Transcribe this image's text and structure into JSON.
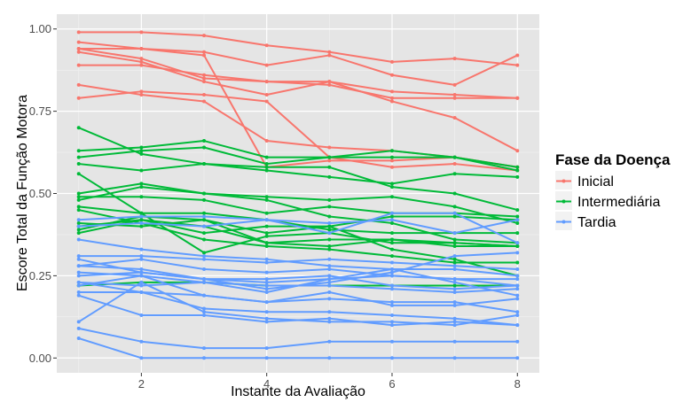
{
  "chart_data": {
    "type": "line",
    "xlabel": "Instante da Avaliação",
    "ylabel": "Escore Total da Função Motora",
    "xlim": [
      0.65,
      8.35
    ],
    "ylim": [
      -0.045,
      1.045
    ],
    "x_ticks": [
      2,
      4,
      6,
      8
    ],
    "x_tick_labels": [
      "2",
      "4",
      "6",
      "8"
    ],
    "y_ticks": [
      0,
      0.25,
      0.5,
      0.75,
      1
    ],
    "y_tick_labels": [
      "0.00",
      "0.25",
      "0.50",
      "0.75",
      "1.00"
    ],
    "grid": true,
    "legend": {
      "title": "Fase da Doença",
      "position": "right",
      "entries": [
        {
          "label": "Inicial",
          "color": "#F8766D"
        },
        {
          "label": "Intermediária",
          "color": "#00BA38"
        },
        {
          "label": "Tardia",
          "color": "#619CFF"
        }
      ]
    },
    "x": [
      1,
      2,
      3,
      4,
      5,
      6,
      7,
      8
    ],
    "groups": [
      {
        "name": "Inicial",
        "color": "#F8766D",
        "subjects": [
          [
            0.99,
            0.99,
            0.98,
            0.95,
            0.93,
            0.9,
            0.91,
            0.89
          ],
          [
            0.96,
            0.94,
            0.93,
            0.89,
            0.92,
            0.86,
            0.83,
            0.92
          ],
          [
            0.94,
            0.91,
            0.85,
            0.84,
            0.84,
            0.81,
            0.8,
            0.79
          ],
          [
            0.93,
            0.9,
            0.84,
            0.8,
            0.84,
            0.78,
            0.73,
            0.63
          ],
          [
            0.89,
            0.89,
            0.86,
            0.84,
            0.83,
            0.79,
            0.79,
            0.79
          ],
          [
            0.83,
            0.8,
            0.78,
            0.66,
            0.64,
            0.63,
            0.61,
            0.58
          ],
          [
            0.79,
            0.81,
            0.8,
            0.78,
            0.61,
            0.58,
            0.59,
            0.57
          ],
          [
            0.94,
            0.94,
            0.92,
            0.58,
            0.6,
            0.6,
            0.61,
            0.58
          ]
        ]
      },
      {
        "name": "Intermediária",
        "color": "#00BA38",
        "subjects": [
          [
            0.7,
            0.62,
            0.59,
            0.57,
            0.55,
            0.53,
            0.56,
            0.55
          ],
          [
            0.63,
            0.64,
            0.66,
            0.61,
            0.61,
            0.61,
            0.61,
            0.57
          ],
          [
            0.61,
            0.63,
            0.64,
            0.59,
            0.61,
            0.63,
            0.61,
            0.58
          ],
          [
            0.59,
            0.57,
            0.59,
            0.58,
            0.58,
            0.52,
            0.5,
            0.45
          ],
          [
            0.56,
            0.44,
            0.32,
            0.37,
            0.38,
            0.35,
            0.35,
            0.34
          ],
          [
            0.5,
            0.53,
            0.5,
            0.49,
            0.48,
            0.49,
            0.46,
            0.41
          ],
          [
            0.49,
            0.49,
            0.48,
            0.44,
            0.46,
            0.44,
            0.44,
            0.43
          ],
          [
            0.48,
            0.52,
            0.5,
            0.48,
            0.43,
            0.41,
            0.36,
            0.35
          ],
          [
            0.46,
            0.44,
            0.44,
            0.42,
            0.39,
            0.38,
            0.38,
            0.38
          ],
          [
            0.45,
            0.41,
            0.36,
            0.34,
            0.33,
            0.31,
            0.29,
            0.29
          ],
          [
            0.41,
            0.4,
            0.42,
            0.38,
            0.4,
            0.33,
            0.3,
            0.25
          ],
          [
            0.39,
            0.43,
            0.42,
            0.35,
            0.34,
            0.36,
            0.35,
            0.34
          ],
          [
            0.4,
            0.42,
            0.38,
            0.4,
            0.4,
            0.43,
            0.43,
            0.42
          ],
          [
            0.38,
            0.42,
            0.4,
            0.35,
            0.36,
            0.36,
            0.34,
            0.34
          ],
          [
            0.22,
            0.23,
            0.23,
            0.22,
            0.22,
            0.22,
            0.22,
            0.22
          ]
        ]
      },
      {
        "name": "Tardia",
        "color": "#619CFF",
        "subjects": [
          [
            0.36,
            0.33,
            0.31,
            0.3,
            0.28,
            0.27,
            0.27,
            0.25
          ],
          [
            0.31,
            0.31,
            0.3,
            0.29,
            0.3,
            0.29,
            0.28,
            0.27
          ],
          [
            0.3,
            0.26,
            0.24,
            0.21,
            0.23,
            0.26,
            0.31,
            0.32
          ],
          [
            0.28,
            0.3,
            0.27,
            0.26,
            0.27,
            0.25,
            0.24,
            0.22
          ],
          [
            0.26,
            0.25,
            0.23,
            0.2,
            0.24,
            0.27,
            0.23,
            0.19
          ],
          [
            0.25,
            0.26,
            0.24,
            0.23,
            0.24,
            0.25,
            0.24,
            0.24
          ],
          [
            0.23,
            0.22,
            0.23,
            0.22,
            0.22,
            0.21,
            0.2,
            0.21
          ],
          [
            0.22,
            0.25,
            0.19,
            0.17,
            0.2,
            0.16,
            0.16,
            0.18
          ],
          [
            0.2,
            0.2,
            0.19,
            0.17,
            0.18,
            0.17,
            0.17,
            0.14
          ],
          [
            0.19,
            0.13,
            0.13,
            0.11,
            0.12,
            0.1,
            0.11,
            0.1
          ],
          [
            0.11,
            0.23,
            0.14,
            0.12,
            0.11,
            0.11,
            0.1,
            0.13
          ],
          [
            0.09,
            0.05,
            0.03,
            0.03,
            0.05,
            0.05,
            0.05,
            0.05
          ],
          [
            0.06,
            0.0,
            0.0,
            0.0,
            0.0,
            0.0,
            0.0,
            0.0
          ],
          [
            0.4,
            0.41,
            0.4,
            0.42,
            0.38,
            0.44,
            0.44,
            0.35
          ],
          [
            0.42,
            0.43,
            0.43,
            0.42,
            0.41,
            0.42,
            0.38,
            0.42
          ],
          [
            0.28,
            0.27,
            0.24,
            0.24,
            0.25,
            0.22,
            0.21,
            0.22
          ],
          [
            0.23,
            0.2,
            0.15,
            0.14,
            0.14,
            0.13,
            0.12,
            0.1
          ]
        ]
      }
    ]
  }
}
